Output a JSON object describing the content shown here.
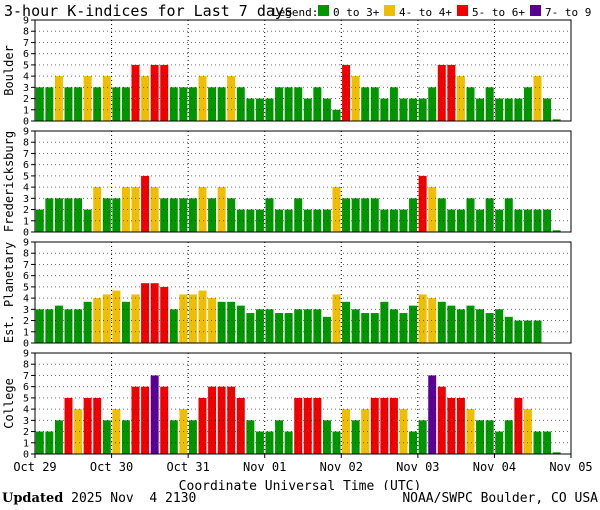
{
  "header": {
    "title": "3-hour K-indices for Last 7 days",
    "legend_label": "Legend:",
    "legend": [
      {
        "label": "0 to 3+",
        "color": "#009600"
      },
      {
        "label": "4- to 4+",
        "color": "#f0be00"
      },
      {
        "label": "5- to 6+",
        "color": "#f00000"
      },
      {
        "label": "7- to 9",
        "color": "#5a0096"
      }
    ]
  },
  "chart_data": {
    "type": "bar",
    "ylim": [
      0,
      9
    ],
    "yticks": [
      0,
      1,
      2,
      3,
      4,
      5,
      6,
      7,
      8,
      9
    ],
    "xlabel": "Coordinate Universal Time (UTC)",
    "x_tick_labels": [
      "Oct 29",
      "Oct 30",
      "Oct 31",
      "Nov 01",
      "Nov 02",
      "Nov 03",
      "Nov 04",
      "Nov 05"
    ],
    "bar_count": 56,
    "panels": [
      {
        "ylabel": "Boulder",
        "values": [
          3,
          3,
          4,
          3,
          3,
          4,
          3,
          4,
          3,
          3,
          5,
          4,
          5,
          5,
          3,
          3,
          3,
          4,
          3,
          3,
          4,
          3,
          2,
          2,
          2,
          3,
          3,
          3,
          2,
          3,
          2,
          1,
          5,
          4,
          3,
          3,
          2,
          3,
          2,
          2,
          2,
          3,
          5,
          5,
          4,
          3,
          2,
          3,
          2,
          2,
          2,
          3,
          4,
          2,
          0.15,
          0
        ]
      },
      {
        "ylabel": "Fredericksburg",
        "values": [
          2,
          3,
          3,
          3,
          3,
          2,
          4,
          3,
          3,
          4,
          4,
          5,
          4,
          3,
          3,
          3,
          3,
          4,
          3,
          4,
          3,
          2,
          2,
          2,
          3,
          2,
          2,
          3,
          2,
          2,
          2,
          4,
          3,
          3,
          3,
          3,
          2,
          2,
          2,
          3,
          5,
          4,
          3,
          2,
          2,
          3,
          2,
          3,
          2,
          3,
          2,
          2,
          2,
          2,
          0.15,
          0
        ]
      },
      {
        "ylabel": "Est. Planetary",
        "values": [
          3,
          3,
          3.33,
          3,
          3,
          3.67,
          4,
          4.33,
          4.67,
          3.67,
          4.33,
          5.33,
          5.33,
          5,
          3,
          4.33,
          4.33,
          4.67,
          4,
          3.67,
          3.67,
          3.33,
          2.67,
          3,
          3,
          2.67,
          2.67,
          3,
          3,
          3,
          2.33,
          4.33,
          3.67,
          3,
          2.67,
          2.67,
          3.67,
          3,
          2.67,
          3.33,
          4.33,
          4,
          3.67,
          3.33,
          3,
          3.33,
          3,
          2.67,
          3,
          2.33,
          2,
          2,
          2,
          0,
          0,
          0
        ]
      },
      {
        "ylabel": "College",
        "values": [
          2,
          2,
          3,
          5,
          4,
          5,
          5,
          3,
          4,
          3,
          6,
          6,
          7,
          6,
          3,
          4,
          3,
          5,
          6,
          6,
          6,
          5,
          3,
          2,
          2,
          3,
          2,
          5,
          5,
          5,
          3,
          2,
          4,
          3,
          4,
          5,
          5,
          5,
          4,
          2,
          3,
          7,
          6,
          5,
          5,
          4,
          3,
          3,
          2,
          3,
          5,
          4,
          2,
          2,
          0.15,
          0
        ]
      }
    ]
  },
  "footer": {
    "updated_label": "Updated",
    "updated_value": "2025 Nov  4 2130",
    "credit": "NOAA/SWPC Boulder, CO USA"
  }
}
